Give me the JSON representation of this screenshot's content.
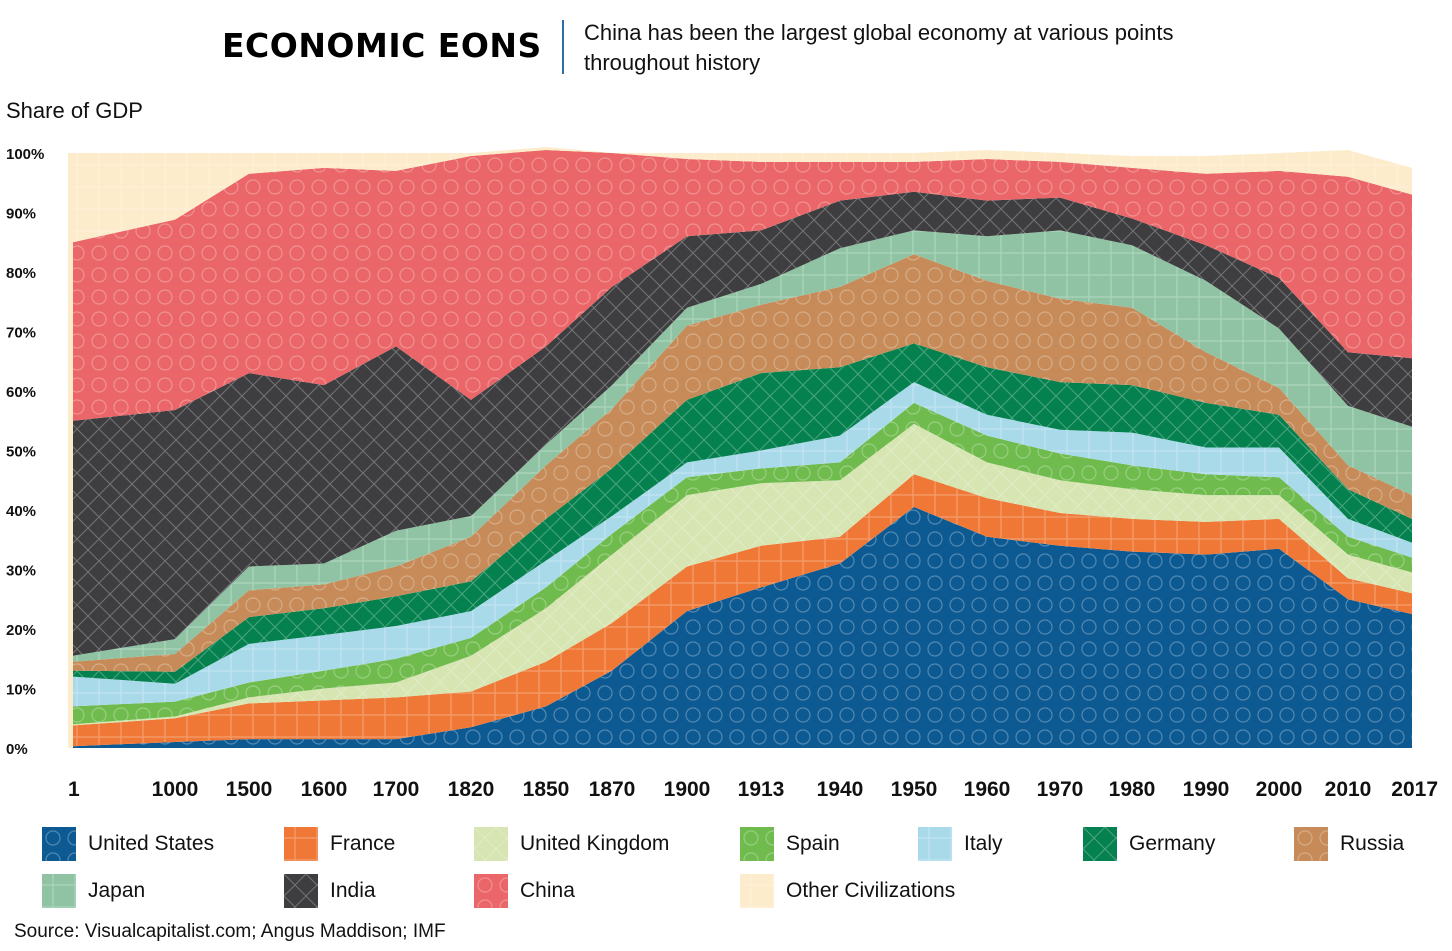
{
  "header": {
    "title": "ECONOMIC EONS",
    "subtitle": "China has been the largest global economy at various points throughout history"
  },
  "footer": {
    "source": "Source: Visualcapitalist.com; Angus Maddison; IMF"
  },
  "chart_data": {
    "type": "area",
    "stacked": true,
    "ylabel": "Share of GDP",
    "xlabel": "",
    "ylim": [
      0,
      100
    ],
    "y_ticks": [
      "0%",
      "10%",
      "20%",
      "30%",
      "40%",
      "50%",
      "60%",
      "70%",
      "80%",
      "90%",
      "100%"
    ],
    "x": [
      "1",
      "1000",
      "1500",
      "1600",
      "1700",
      "1820",
      "1850",
      "1870",
      "1900",
      "1913",
      "1940",
      "1950",
      "1960",
      "1970",
      "1980",
      "1990",
      "2000",
      "2010",
      "2017"
    ],
    "grid": false,
    "legend_position": "bottom",
    "series": [
      {
        "name": "United States",
        "color": "#0d5a93",
        "values": [
          0.3,
          1.0,
          1.5,
          1.5,
          1.5,
          3.5,
          7.0,
          13.0,
          23.0,
          27.0,
          31.0,
          40.5,
          35.5,
          34.0,
          33.0,
          32.5,
          33.5,
          25.0,
          22.5
        ]
      },
      {
        "name": "France",
        "color": "#ef7837",
        "values": [
          3.5,
          4.0,
          6.0,
          6.5,
          7.0,
          6.0,
          7.5,
          8.0,
          7.5,
          7.0,
          4.5,
          5.5,
          6.5,
          5.5,
          5.5,
          5.5,
          5.0,
          3.5,
          3.5
        ]
      },
      {
        "name": "United Kingdom",
        "color": "#d6e5b1",
        "values": [
          0.2,
          0.3,
          1.0,
          2.0,
          2.5,
          6.0,
          9.0,
          11.5,
          12.0,
          10.5,
          9.5,
          8.5,
          6.0,
          5.5,
          5.0,
          4.5,
          4.0,
          4.0,
          3.5
        ]
      },
      {
        "name": "Spain",
        "color": "#70bb4e",
        "values": [
          3.0,
          2.5,
          2.5,
          3.0,
          4.0,
          3.0,
          3.5,
          3.5,
          3.0,
          2.5,
          3.0,
          3.5,
          4.5,
          4.5,
          4.0,
          3.5,
          3.0,
          3.0,
          2.5
        ]
      },
      {
        "name": "Italy",
        "color": "#a9daea",
        "values": [
          5.0,
          3.0,
          6.5,
          6.0,
          5.5,
          4.5,
          4.5,
          3.0,
          2.5,
          3.0,
          4.5,
          3.5,
          3.5,
          4.0,
          5.5,
          4.5,
          5.0,
          3.0,
          2.5
        ]
      },
      {
        "name": "Germany",
        "color": "#04814e",
        "values": [
          1.0,
          2.0,
          4.5,
          4.5,
          5.0,
          5.0,
          7.0,
          8.0,
          10.5,
          13.0,
          11.5,
          6.5,
          8.0,
          8.0,
          8.0,
          7.5,
          5.5,
          5.0,
          4.0
        ]
      },
      {
        "name": "Russia",
        "color": "#c68b58",
        "values": [
          1.5,
          3.0,
          4.5,
          4.0,
          5.0,
          7.5,
          9.0,
          10.0,
          12.5,
          11.5,
          13.5,
          15.0,
          14.5,
          14.0,
          13.0,
          8.5,
          4.5,
          4.0,
          4.0
        ]
      },
      {
        "name": "Japan",
        "color": "#8fc3a3",
        "values": [
          1.0,
          2.5,
          4.0,
          3.5,
          6.0,
          3.5,
          3.5,
          4.0,
          3.0,
          3.5,
          6.5,
          4.0,
          7.5,
          11.5,
          10.5,
          12.0,
          10.0,
          10.0,
          11.5
        ]
      },
      {
        "name": "India",
        "color": "#3e3e40",
        "values": [
          39.5,
          38.5,
          32.5,
          30.0,
          31.0,
          19.5,
          16.5,
          16.5,
          12.0,
          9.0,
          8.0,
          6.5,
          6.0,
          5.5,
          4.5,
          6.0,
          8.5,
          9.0,
          11.5
        ]
      },
      {
        "name": "China",
        "color": "#ea6668",
        "values": [
          30.0,
          32.0,
          33.5,
          36.5,
          29.5,
          41.0,
          33.0,
          22.5,
          13.0,
          11.5,
          6.5,
          5.0,
          7.0,
          6.0,
          8.5,
          12.0,
          18.0,
          29.5,
          27.5
        ]
      },
      {
        "name": "Other Civilizations",
        "color": "#fdeccb",
        "values": [
          15.0,
          11.2,
          3.5,
          2.5,
          3.0,
          0.5,
          0.5,
          0.0,
          1.0,
          1.5,
          1.5,
          1.5,
          1.5,
          1.5,
          2.0,
          3.0,
          3.0,
          4.5,
          4.5
        ]
      }
    ]
  }
}
